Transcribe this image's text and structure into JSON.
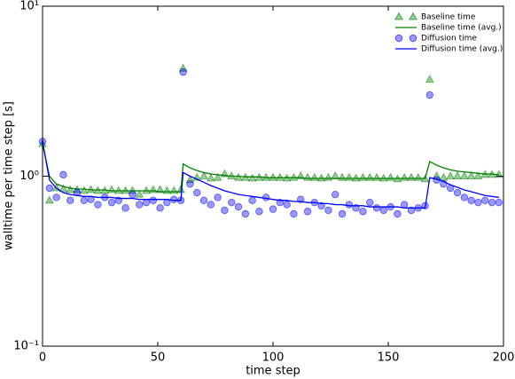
{
  "chart_data": {
    "type": "scatter-line",
    "xlabel": "time step",
    "ylabel": "walltime per time step [s]",
    "xlim": [
      0,
      200
    ],
    "xticks": [
      0,
      50,
      100,
      150,
      200
    ],
    "ylim": [
      0.1,
      10
    ],
    "log_y": true,
    "yticks": [
      {
        "value": 0.1,
        "label": "10⁻¹"
      },
      {
        "value": 1,
        "label": "10⁰"
      },
      {
        "value": 10,
        "label": "10¹"
      }
    ],
    "grid": false,
    "legend": "upper right",
    "x": [
      0,
      3,
      6,
      9,
      12,
      15,
      18,
      21,
      24,
      27,
      30,
      33,
      36,
      39,
      42,
      45,
      48,
      51,
      54,
      57,
      60,
      61,
      64,
      67,
      70,
      73,
      76,
      79,
      82,
      85,
      88,
      91,
      94,
      97,
      100,
      103,
      106,
      109,
      112,
      115,
      118,
      121,
      124,
      127,
      130,
      133,
      136,
      139,
      142,
      145,
      148,
      151,
      154,
      157,
      160,
      163,
      166,
      168,
      171,
      174,
      177,
      180,
      183,
      186,
      189,
      192,
      195,
      198
    ],
    "series": [
      {
        "name": "Baseline time",
        "kind": "scatter",
        "marker": "triangle",
        "color": "#008000",
        "values": [
          1.55,
          0.72,
          0.85,
          0.84,
          0.83,
          0.83,
          0.82,
          0.83,
          0.82,
          0.82,
          0.83,
          0.82,
          0.82,
          0.82,
          0.78,
          0.82,
          0.83,
          0.83,
          0.82,
          0.82,
          0.83,
          4.3,
          0.95,
          0.98,
          1.0,
          0.97,
          0.98,
          1.03,
          1.0,
          0.98,
          0.98,
          0.97,
          0.98,
          0.98,
          0.98,
          0.98,
          0.97,
          0.98,
          1.0,
          0.98,
          0.98,
          0.97,
          0.98,
          1.0,
          0.98,
          0.98,
          0.97,
          0.98,
          0.98,
          0.98,
          0.97,
          0.98,
          0.96,
          0.98,
          0.98,
          0.98,
          0.96,
          3.7,
          1.0,
          0.98,
          1.0,
          1.0,
          1.0,
          1.0,
          1.0,
          1.02,
          1.02,
          1.02
        ]
      },
      {
        "name": "Baseline time (avg.)",
        "kind": "line",
        "color": "#008000",
        "values": [
          1.55,
          1.0,
          0.9,
          0.87,
          0.85,
          0.84,
          0.84,
          0.83,
          0.83,
          0.83,
          0.82,
          0.82,
          0.82,
          0.82,
          0.82,
          0.82,
          0.82,
          0.81,
          0.81,
          0.81,
          0.81,
          1.18,
          1.12,
          1.08,
          1.05,
          1.03,
          1.02,
          1.01,
          1.0,
          1.0,
          0.99,
          0.99,
          0.99,
          0.98,
          0.98,
          0.98,
          0.98,
          0.98,
          0.98,
          0.97,
          0.97,
          0.97,
          0.97,
          0.97,
          0.97,
          0.97,
          0.97,
          0.97,
          0.97,
          0.97,
          0.97,
          0.97,
          0.97,
          0.97,
          0.97,
          0.97,
          0.97,
          1.22,
          1.16,
          1.12,
          1.09,
          1.07,
          1.06,
          1.05,
          1.04,
          1.03,
          1.03,
          1.02
        ]
      },
      {
        "name": "Diffusion time",
        "kind": "scatter",
        "marker": "circle",
        "color": "#0000ff",
        "values": [
          1.6,
          0.85,
          0.75,
          1.02,
          0.72,
          0.8,
          0.72,
          0.73,
          0.68,
          0.75,
          0.7,
          0.72,
          0.65,
          0.78,
          0.68,
          0.7,
          0.72,
          0.65,
          0.7,
          0.73,
          0.72,
          4.1,
          0.9,
          0.8,
          0.72,
          0.68,
          0.75,
          0.63,
          0.7,
          0.66,
          0.6,
          0.72,
          0.62,
          0.75,
          0.64,
          0.7,
          0.68,
          0.6,
          0.73,
          0.62,
          0.7,
          0.67,
          0.63,
          0.78,
          0.6,
          0.68,
          0.65,
          0.62,
          0.7,
          0.65,
          0.63,
          0.66,
          0.6,
          0.68,
          0.63,
          0.65,
          0.67,
          3.0,
          0.95,
          0.9,
          0.85,
          0.8,
          0.75,
          0.72,
          0.7,
          0.72,
          0.7,
          0.7
        ]
      },
      {
        "name": "Diffusion time (avg.)",
        "kind": "line",
        "color": "#0000ff",
        "values": [
          1.6,
          0.95,
          0.85,
          0.8,
          0.78,
          0.77,
          0.76,
          0.76,
          0.75,
          0.75,
          0.75,
          0.74,
          0.74,
          0.74,
          0.73,
          0.73,
          0.73,
          0.73,
          0.73,
          0.72,
          0.72,
          1.05,
          1.0,
          0.96,
          0.92,
          0.88,
          0.85,
          0.82,
          0.8,
          0.78,
          0.77,
          0.76,
          0.75,
          0.74,
          0.73,
          0.72,
          0.72,
          0.71,
          0.71,
          0.7,
          0.7,
          0.69,
          0.69,
          0.68,
          0.68,
          0.67,
          0.67,
          0.67,
          0.66,
          0.66,
          0.66,
          0.66,
          0.66,
          0.65,
          0.65,
          0.65,
          0.65,
          0.98,
          0.96,
          0.93,
          0.89,
          0.86,
          0.83,
          0.81,
          0.79,
          0.77,
          0.76,
          0.75
        ]
      }
    ]
  }
}
